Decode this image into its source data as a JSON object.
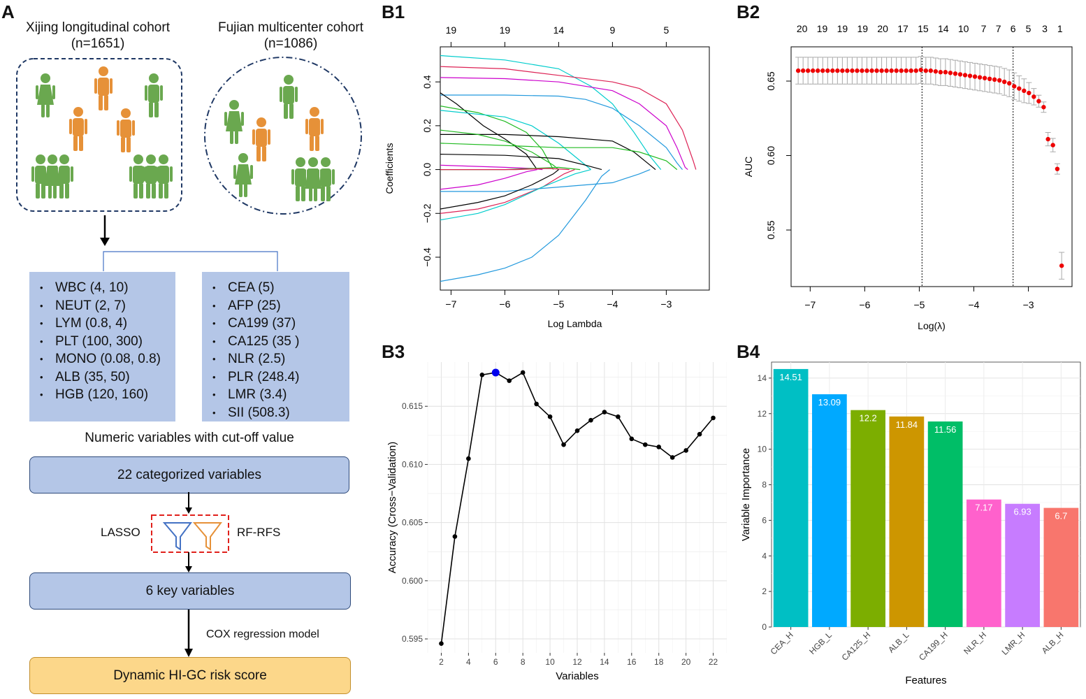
{
  "panelA": {
    "label": "A",
    "cohort1": {
      "title": "Xijing longitudinal cohort",
      "n": "(n=1651)"
    },
    "cohort2": {
      "title": "Fujian multicenter cohort",
      "n": "(n=1086)"
    },
    "left_vars": [
      "WBC (4, 10)",
      "NEUT (2, 7)",
      "LYM (0.8, 4)",
      "PLT (100, 300)",
      "MONO (0.08, 0.8)",
      "ALB (35, 50)",
      "HGB (120, 160)"
    ],
    "right_vars": [
      "CEA  (5)",
      "AFP (25)",
      "CA199 (37)",
      "CA125 (35 )",
      "NLR (2.5)",
      "PLR (248.4)",
      "LMR (3.4)",
      "SII (508.3)"
    ],
    "cutoff_caption": "Numeric variables with cut-off value",
    "step1": "22 categorized variables",
    "lasso": "LASSO",
    "rfrfs": "RF-RFS",
    "step2": "6 key variables",
    "cox": "COX regression model",
    "step3": "Dynamic HI-GC risk score",
    "colors": {
      "green": "#6aa84f",
      "orange": "#e69138",
      "box": "#b4c6e7",
      "final": "#fcd78a"
    }
  },
  "chart_data": [
    {
      "id": "B1",
      "label": "B1",
      "type": "line",
      "xlabel": "Log Lambda",
      "ylabel": "Coefficients",
      "xticks": [
        -7,
        -6,
        -5,
        -4,
        -3
      ],
      "yticks": [
        -0.4,
        -0.2,
        0.0,
        0.2,
        0.4
      ],
      "top_ticks": [
        {
          "x": -7,
          "label": "19"
        },
        {
          "x": -6,
          "label": "19"
        },
        {
          "x": -5,
          "label": "14"
        },
        {
          "x": -4,
          "label": "9"
        },
        {
          "x": -3,
          "label": "5"
        }
      ],
      "xlim": [
        -7.2,
        -2.2
      ],
      "ylim": [
        -0.55,
        0.56
      ],
      "series": [
        {
          "color": "#00cccc",
          "points": [
            [
              -7.2,
              0.52
            ],
            [
              -6,
              0.5
            ],
            [
              -5,
              0.46
            ],
            [
              -4.4,
              0.38
            ],
            [
              -4,
              0.3
            ],
            [
              -3.6,
              0.17
            ],
            [
              -3.3,
              0.06
            ],
            [
              -3.1,
              0
            ]
          ]
        },
        {
          "color": "#dd2255",
          "points": [
            [
              -7.2,
              0.47
            ],
            [
              -6,
              0.46
            ],
            [
              -5,
              0.43
            ],
            [
              -4,
              0.4
            ],
            [
              -3.5,
              0.37
            ],
            [
              -3,
              0.3
            ],
            [
              -2.7,
              0.18
            ],
            [
              -2.5,
              0.04
            ],
            [
              -2.45,
              0
            ]
          ]
        },
        {
          "color": "#cc00cc",
          "points": [
            [
              -7.2,
              0.42
            ],
            [
              -6,
              0.415
            ],
            [
              -5,
              0.4
            ],
            [
              -4,
              0.36
            ],
            [
              -3.5,
              0.3
            ],
            [
              -3,
              0.2
            ],
            [
              -2.8,
              0.1
            ],
            [
              -2.65,
              0.01
            ],
            [
              -2.6,
              0
            ]
          ]
        },
        {
          "color": "#2299dd",
          "points": [
            [
              -7.2,
              0.34
            ],
            [
              -6,
              0.34
            ],
            [
              -5,
              0.335
            ],
            [
              -4.5,
              0.32
            ],
            [
              -4,
              0.28
            ],
            [
              -3.5,
              0.2
            ],
            [
              -3,
              0.1
            ],
            [
              -2.8,
              0.03
            ],
            [
              -2.7,
              0
            ]
          ]
        },
        {
          "color": "#000000",
          "points": [
            [
              -7.2,
              0.35
            ],
            [
              -6.9,
              0.3
            ],
            [
              -6.4,
              0.2
            ],
            [
              -6,
              0.14
            ],
            [
              -5.6,
              0.07
            ],
            [
              -5.4,
              0
            ]
          ]
        },
        {
          "color": "#22bb22",
          "points": [
            [
              -7.2,
              0.29
            ],
            [
              -6.5,
              0.26
            ],
            [
              -6,
              0.22
            ],
            [
              -5.6,
              0.17
            ],
            [
              -5.3,
              0.09
            ],
            [
              -5.1,
              0
            ]
          ]
        },
        {
          "color": "#00cccc",
          "points": [
            [
              -7.2,
              0.27
            ],
            [
              -6,
              0.24
            ],
            [
              -5.5,
              0.2
            ],
            [
              -5,
              0.12
            ],
            [
              -4.6,
              0.04
            ],
            [
              -4.4,
              0
            ]
          ]
        },
        {
          "color": "#000000",
          "points": [
            [
              -7.2,
              0.16
            ],
            [
              -6,
              0.16
            ],
            [
              -5,
              0.15
            ],
            [
              -4,
              0.13
            ],
            [
              -3.6,
              0.08
            ],
            [
              -3.3,
              0.02
            ],
            [
              -3.2,
              0
            ]
          ]
        },
        {
          "color": "#22bb22",
          "points": [
            [
              -7.2,
              0.18
            ],
            [
              -6.5,
              0.16
            ],
            [
              -6,
              0.13
            ],
            [
              -5.5,
              0.08
            ],
            [
              -5.1,
              0.02
            ],
            [
              -5,
              0
            ]
          ]
        },
        {
          "color": "#22bb22",
          "points": [
            [
              -7.2,
              0.12
            ],
            [
              -6,
              0.11
            ],
            [
              -5,
              0.1
            ],
            [
              -4,
              0.1
            ],
            [
              -3.5,
              0.08
            ],
            [
              -3,
              0.04
            ],
            [
              -2.8,
              0
            ]
          ]
        },
        {
          "color": "#000000",
          "points": [
            [
              -7.2,
              0.07
            ],
            [
              -6,
              0.065
            ],
            [
              -5,
              0.05
            ],
            [
              -4.5,
              0.02
            ],
            [
              -4.2,
              0
            ]
          ]
        },
        {
          "color": "#cc00cc",
          "points": [
            [
              -7.2,
              0.02
            ],
            [
              -6,
              0.01
            ],
            [
              -5.5,
              0.005
            ],
            [
              -5.3,
              0
            ]
          ]
        },
        {
          "color": "#22bb22",
          "points": [
            [
              -7.2,
              0.0
            ],
            [
              -6,
              0.0
            ],
            [
              -5,
              0.01
            ],
            [
              -4.6,
              0
            ]
          ]
        },
        {
          "color": "#dd2255",
          "points": [
            [
              -7.2,
              0.0
            ],
            [
              -5.8,
              0.0
            ],
            [
              -5.2,
              0.005
            ],
            [
              -4.8,
              0
            ]
          ]
        },
        {
          "color": "#cc00cc",
          "points": [
            [
              -7.2,
              -0.09
            ],
            [
              -6.5,
              -0.07
            ],
            [
              -6,
              -0.04
            ],
            [
              -5.6,
              -0.01
            ],
            [
              -5.4,
              0
            ]
          ]
        },
        {
          "color": "#2299dd",
          "points": [
            [
              -7.2,
              -0.1
            ],
            [
              -6,
              -0.1
            ],
            [
              -5,
              -0.08
            ],
            [
              -4,
              -0.06
            ],
            [
              -3.5,
              -0.02
            ],
            [
              -3.3,
              0
            ]
          ]
        },
        {
          "color": "#000000",
          "points": [
            [
              -7.2,
              -0.18
            ],
            [
              -6.5,
              -0.15
            ],
            [
              -6,
              -0.12
            ],
            [
              -5.5,
              -0.07
            ],
            [
              -5.1,
              -0.02
            ],
            [
              -5,
              0
            ]
          ]
        },
        {
          "color": "#dd2255",
          "points": [
            [
              -7.2,
              -0.2
            ],
            [
              -6.5,
              -0.18
            ],
            [
              -6,
              -0.15
            ],
            [
              -5.3,
              -0.08
            ],
            [
              -4.9,
              -0.02
            ],
            [
              -4.7,
              0
            ]
          ]
        },
        {
          "color": "#00cccc",
          "points": [
            [
              -7.2,
              -0.23
            ],
            [
              -6.5,
              -0.2
            ],
            [
              -6,
              -0.16
            ],
            [
              -5.3,
              -0.08
            ],
            [
              -4.7,
              -0.02
            ],
            [
              -4.4,
              0
            ]
          ]
        },
        {
          "color": "#2299dd",
          "points": [
            [
              -7.2,
              -0.51
            ],
            [
              -6.5,
              -0.48
            ],
            [
              -6,
              -0.45
            ],
            [
              -5.5,
              -0.4
            ],
            [
              -5,
              -0.3
            ],
            [
              -4.5,
              -0.14
            ],
            [
              -4.2,
              -0.03
            ],
            [
              -4.05,
              0
            ]
          ]
        }
      ]
    },
    {
      "id": "B2",
      "label": "B2",
      "type": "scatter",
      "xlabel": "Log(λ)",
      "ylabel": "AUC",
      "xticks": [
        -7,
        -6,
        -5,
        -4,
        -3
      ],
      "yticks": [
        0.55,
        0.6,
        0.65
      ],
      "top_ticks": [
        {
          "x": -7.15,
          "label": "20"
        },
        {
          "x": -6.78,
          "label": "19"
        },
        {
          "x": -6.41,
          "label": "19"
        },
        {
          "x": -6.04,
          "label": "19"
        },
        {
          "x": -5.67,
          "label": "20"
        },
        {
          "x": -5.3,
          "label": "17"
        },
        {
          "x": -4.93,
          "label": "15"
        },
        {
          "x": -4.56,
          "label": "14"
        },
        {
          "x": -4.19,
          "label": "10"
        },
        {
          "x": -3.82,
          "label": "7"
        },
        {
          "x": -3.55,
          "label": "7"
        },
        {
          "x": -3.28,
          "label": "6"
        },
        {
          "x": -3.0,
          "label": "5"
        },
        {
          "x": -2.7,
          "label": "3"
        },
        {
          "x": -2.42,
          "label": "1"
        }
      ],
      "xlim": [
        -7.35,
        -2.2
      ],
      "ylim": [
        0.512,
        0.673
      ],
      "vlines": [
        -4.95,
        -3.28
      ],
      "x": [
        -7.22,
        -7.13,
        -7.04,
        -6.95,
        -6.86,
        -6.77,
        -6.68,
        -6.59,
        -6.5,
        -6.41,
        -6.32,
        -6.23,
        -6.14,
        -6.05,
        -5.96,
        -5.87,
        -5.78,
        -5.69,
        -5.6,
        -5.51,
        -5.42,
        -5.33,
        -5.24,
        -5.15,
        -5.06,
        -4.97,
        -4.88,
        -4.79,
        -4.7,
        -4.61,
        -4.52,
        -4.43,
        -4.34,
        -4.25,
        -4.16,
        -4.07,
        -3.98,
        -3.89,
        -3.8,
        -3.71,
        -3.62,
        -3.53,
        -3.44,
        -3.35,
        -3.26,
        -3.17,
        -3.08,
        -2.99,
        -2.9,
        -2.81,
        -2.72,
        -2.64,
        -2.55,
        -2.47,
        -2.39
      ],
      "values": [
        0.657,
        0.657,
        0.657,
        0.657,
        0.657,
        0.657,
        0.657,
        0.657,
        0.657,
        0.657,
        0.657,
        0.657,
        0.657,
        0.657,
        0.657,
        0.657,
        0.657,
        0.657,
        0.657,
        0.657,
        0.657,
        0.657,
        0.657,
        0.657,
        0.657,
        0.6575,
        0.657,
        0.657,
        0.6565,
        0.656,
        0.656,
        0.6555,
        0.655,
        0.6545,
        0.654,
        0.6535,
        0.653,
        0.6525,
        0.652,
        0.6515,
        0.651,
        0.6505,
        0.6495,
        0.6485,
        0.6465,
        0.645,
        0.6435,
        0.642,
        0.6395,
        0.6365,
        0.6325,
        0.611,
        0.607,
        0.591,
        0.526
      ],
      "errors": [
        0.009,
        0.009,
        0.009,
        0.009,
        0.009,
        0.009,
        0.009,
        0.009,
        0.009,
        0.009,
        0.009,
        0.009,
        0.009,
        0.009,
        0.009,
        0.009,
        0.009,
        0.009,
        0.009,
        0.009,
        0.009,
        0.009,
        0.009,
        0.009,
        0.009,
        0.009,
        0.009,
        0.009,
        0.009,
        0.009,
        0.009,
        0.009,
        0.009,
        0.009,
        0.009,
        0.009,
        0.009,
        0.009,
        0.009,
        0.009,
        0.009,
        0.009,
        0.009,
        0.009,
        0.009,
        0.0085,
        0.008,
        0.007,
        0.0055,
        0.004,
        0.0035,
        0.0045,
        0.0045,
        0.0035,
        0.009
      ]
    },
    {
      "id": "B3",
      "label": "B3",
      "type": "line",
      "xlabel": "Variables",
      "ylabel": "Accuracy (Cross−Validation)",
      "xticks": [
        2,
        4,
        6,
        8,
        10,
        12,
        14,
        16,
        18,
        20,
        22
      ],
      "yticks": [
        0.595,
        0.6,
        0.605,
        0.61,
        0.615
      ],
      "xlim": [
        1,
        23
      ],
      "ylim": [
        0.5938,
        0.6188
      ],
      "highlight_index": 4,
      "x": [
        2,
        3,
        4,
        5,
        6,
        7,
        8,
        9,
        10,
        11,
        12,
        13,
        14,
        15,
        16,
        17,
        18,
        19,
        20,
        21,
        22
      ],
      "values": [
        0.5946,
        0.6038,
        0.6105,
        0.6177,
        0.6179,
        0.6172,
        0.6179,
        0.6152,
        0.6141,
        0.6117,
        0.6129,
        0.6138,
        0.6145,
        0.6141,
        0.6122,
        0.6117,
        0.6115,
        0.6106,
        0.6112,
        0.6126,
        0.614
      ]
    },
    {
      "id": "B4",
      "label": "B4",
      "type": "bar",
      "xlabel": "Features",
      "ylabel": "Variable Importance",
      "yticks": [
        0,
        2,
        4,
        6,
        8,
        10,
        12,
        14
      ],
      "ylim": [
        0,
        14.9
      ],
      "categories": [
        "CEA_H",
        "HGB_L",
        "CA125_H",
        "ALB_L",
        "CA199_H",
        "NLR_H",
        "LMR_H",
        "ALB_H"
      ],
      "values": [
        14.51,
        13.09,
        12.2,
        11.84,
        11.56,
        7.17,
        6.93,
        6.7
      ],
      "labels": [
        "14.51",
        "13.09",
        "12.2",
        "11.84",
        "11.56",
        "7.17",
        "6.93",
        "6.7"
      ],
      "colors": [
        "#00bfc4",
        "#00a9ff",
        "#7cae00",
        "#cd9600",
        "#00be67",
        "#ff61cc",
        "#c77cff",
        "#f8766d"
      ]
    }
  ]
}
